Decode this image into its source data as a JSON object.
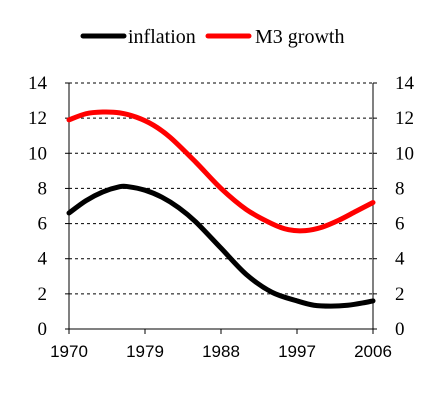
{
  "chart_data": {
    "type": "line",
    "title": "",
    "xlabel": "",
    "ylabel": "",
    "xlim": [
      1970,
      2006
    ],
    "ylim": [
      0,
      14
    ],
    "x_ticks": [
      1970,
      1979,
      1988,
      1997,
      2006
    ],
    "x_tick_labels": [
      "1970",
      "1979",
      "1988",
      "1997",
      "2006"
    ],
    "y_ticks": [
      0,
      2,
      4,
      6,
      8,
      10,
      12,
      14
    ],
    "y_tick_labels": [
      "0",
      "2",
      "4",
      "6",
      "8",
      "10",
      "12",
      "14"
    ],
    "y_axis_mirrored_right": true,
    "grid": "horizontal dashed",
    "legend_position": "top",
    "series": [
      {
        "name": "inflation",
        "color": "#000000",
        "x": [
          1970,
          1972,
          1974,
          1976,
          1977,
          1979,
          1981,
          1983,
          1985,
          1988,
          1991,
          1994,
          1997,
          1999,
          2001,
          2003,
          2005,
          2006
        ],
        "y": [
          6.6,
          7.3,
          7.8,
          8.1,
          8.1,
          7.9,
          7.5,
          6.9,
          6.1,
          4.6,
          3.1,
          2.1,
          1.6,
          1.35,
          1.3,
          1.35,
          1.5,
          1.6
        ]
      },
      {
        "name": "M3 growth",
        "color": "#ff0000",
        "x": [
          1970,
          1972,
          1974,
          1976,
          1978,
          1980,
          1982,
          1985,
          1988,
          1991,
          1994,
          1996,
          1998,
          2000,
          2002,
          2004,
          2006
        ],
        "y": [
          11.9,
          12.25,
          12.35,
          12.3,
          12.05,
          11.6,
          10.9,
          9.5,
          8.0,
          6.8,
          6.0,
          5.65,
          5.6,
          5.8,
          6.2,
          6.7,
          7.2
        ]
      }
    ]
  }
}
